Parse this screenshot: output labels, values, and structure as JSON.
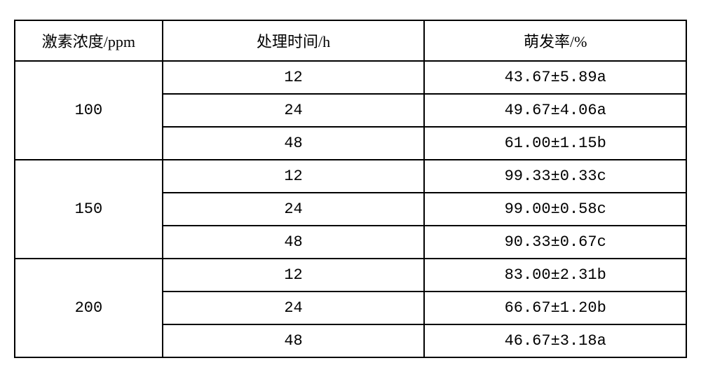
{
  "table": {
    "type": "table",
    "border_color": "#000000",
    "background_color": "#ffffff",
    "text_color": "#000000",
    "header_fontsize": 22,
    "cell_fontsize": 22,
    "font_family": "SimSun",
    "column_widths_pct": [
      22,
      39,
      39
    ],
    "columns": [
      "激素浓度/ppm",
      "处理时间/h",
      "萌发率/%"
    ],
    "groups": [
      {
        "concentration": "100",
        "rows": [
          {
            "time": "12",
            "rate": "43.67±5.89a"
          },
          {
            "time": "24",
            "rate": "49.67±4.06a"
          },
          {
            "time": "48",
            "rate": "61.00±1.15b"
          }
        ]
      },
      {
        "concentration": "150",
        "rows": [
          {
            "time": "12",
            "rate": "99.33±0.33c"
          },
          {
            "time": "24",
            "rate": "99.00±0.58c"
          },
          {
            "time": "48",
            "rate": "90.33±0.67c"
          }
        ]
      },
      {
        "concentration": "200",
        "rows": [
          {
            "time": "12",
            "rate": "83.00±2.31b"
          },
          {
            "time": "24",
            "rate": "66.67±1.20b"
          },
          {
            "time": "48",
            "rate": "46.67±3.18a"
          }
        ]
      }
    ]
  }
}
